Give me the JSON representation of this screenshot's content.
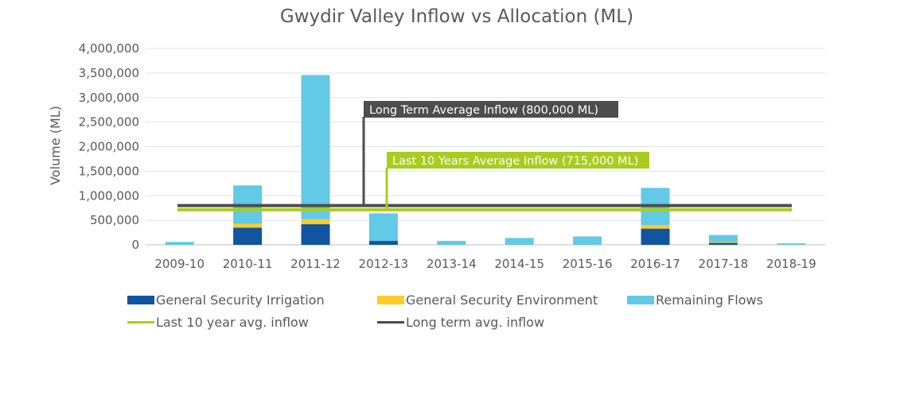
{
  "chart_data": {
    "type": "bar",
    "stacked": true,
    "title": "Gwydir Valley Inflow vs Allocation (ML)",
    "xlabel": "",
    "ylabel": "Volume (ML)",
    "ylim": [
      0,
      4000000
    ],
    "yticks": [
      0,
      500000,
      1000000,
      1500000,
      2000000,
      2500000,
      3000000,
      3500000,
      4000000
    ],
    "ytick_labels": [
      "0",
      "500,000",
      "1,000,000",
      "1,500,000",
      "2,000,000",
      "2,500,000",
      "3,000,000",
      "3,500,000",
      "4,000,000"
    ],
    "grid": true,
    "legend_position": "bottom",
    "categories": [
      "2009-10",
      "2010-11",
      "2011-12",
      "2012-13",
      "2013-14",
      "2014-15",
      "2015-16",
      "2016-17",
      "2017-18",
      "2018-19"
    ],
    "series": [
      {
        "name": "General Security Irrigation",
        "color": "#1155a0",
        "values": [
          0,
          350000,
          420000,
          80000,
          0,
          0,
          0,
          330000,
          40000,
          0
        ]
      },
      {
        "name": "General Security Environment",
        "color": "#ffcc29",
        "values": [
          0,
          80000,
          100000,
          0,
          0,
          0,
          0,
          70000,
          20000,
          0
        ]
      },
      {
        "name": "Remaining Flows",
        "color": "#62c9e7",
        "values": [
          60000,
          780000,
          2940000,
          560000,
          80000,
          140000,
          170000,
          760000,
          140000,
          30000
        ]
      }
    ],
    "reference_lines": [
      {
        "name": "Last 10 year avg. inflow",
        "value": 715000,
        "color": "#a9cc1f",
        "annotation": "Last 10 Years Average Inflow (715,000 ML)"
      },
      {
        "name": "Long term avg. inflow",
        "value": 800000,
        "color": "#4d4d4d",
        "annotation": "Long Term Average Inflow (800,000 ML)"
      }
    ]
  }
}
